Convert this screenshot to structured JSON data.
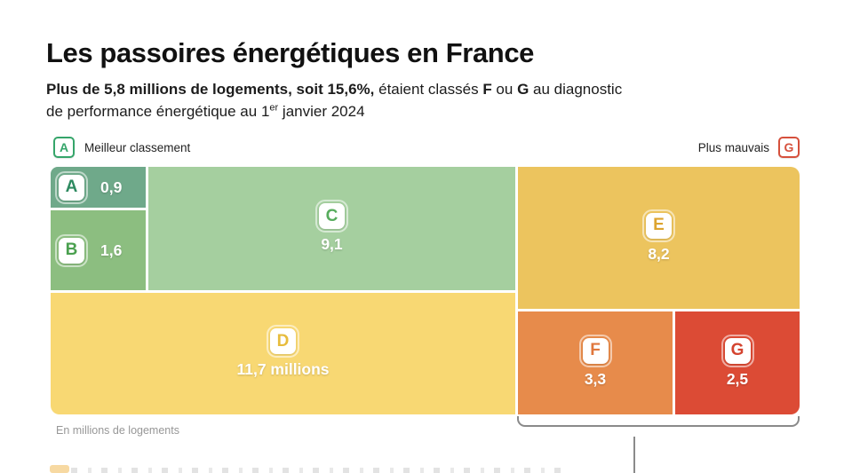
{
  "header": {
    "title": "Les passoires énergétiques en France",
    "subtitle_line1": [
      {
        "t": "Plus de 5,8 millions de logements, soit 15,6%,"
      },
      {
        "t": " étaient classés "
      },
      {
        "t": "F"
      },
      {
        "t": " ou "
      },
      {
        "t": "G"
      },
      {
        "t": " au diagnostic"
      }
    ],
    "subtitle_line2": [
      {
        "t": "de performance énergétique au 1"
      },
      {
        "t": "er"
      },
      {
        "t": " janvier 2024"
      }
    ]
  },
  "legend": {
    "best": {
      "badge": "A",
      "label": "Meilleur classement",
      "color": "#35a56a"
    },
    "worst": {
      "badge": "G",
      "label": "Plus mauvais",
      "color": "#d6503c"
    }
  },
  "footnote": "En millions de logements",
  "chart_data": {
    "type": "treemap",
    "title": "Les passoires énergétiques en France",
    "subtitle": "Plus de 5,8 millions de logements, soit 15,6%, étaient classés F ou G au diagnostic de performance énergétique au 1er janvier 2024",
    "unit": "millions de logements",
    "categories": [
      "A",
      "B",
      "C",
      "D",
      "E",
      "F",
      "G"
    ],
    "values": [
      0.9,
      1.6,
      9.1,
      11.7,
      8.2,
      3.3,
      2.5
    ],
    "blocks": [
      {
        "letter": "A",
        "value": 0.9,
        "value_label": "0,9",
        "color": "#6fa98a",
        "letter_color": "#2e8a60"
      },
      {
        "letter": "B",
        "value": 1.6,
        "value_label": "1,6",
        "color": "#8cbe80",
        "letter_color": "#4aa04f"
      },
      {
        "letter": "C",
        "value": 9.1,
        "value_label": "9,1",
        "color": "#a5cf9f",
        "letter_color": "#57ac5d"
      },
      {
        "letter": "D",
        "value": 11.7,
        "value_label": "11,7 millions",
        "color": "#f8d873",
        "letter_color": "#e7bc3d"
      },
      {
        "letter": "E",
        "value": 8.2,
        "value_label": "8,2",
        "color": "#ecc45e",
        "letter_color": "#dda42f"
      },
      {
        "letter": "F",
        "value": 3.3,
        "value_label": "3,3",
        "color": "#e78b4b",
        "letter_color": "#e0773d"
      },
      {
        "letter": "G",
        "value": 2.5,
        "value_label": "2,5",
        "color": "#dc4b35",
        "letter_color": "#d44430"
      }
    ],
    "bracket_groups": [
      "F",
      "G"
    ],
    "bracket_color": "#8a8a8a",
    "legend_position": "top"
  }
}
